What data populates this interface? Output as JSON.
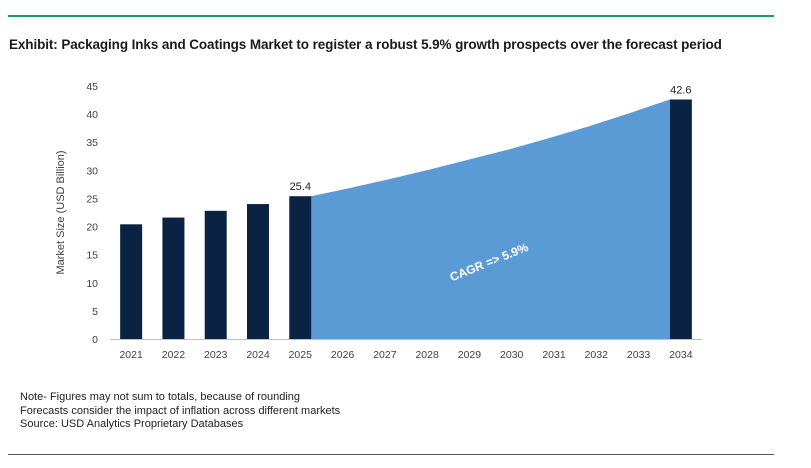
{
  "chart_data": {
    "type": "bar",
    "title": "Exhibit: Packaging Inks and Coatings Market to register a robust 5.9% growth prospects over the forecast period",
    "ylabel": "Market Size (USD Billion)",
    "xlabel": "",
    "ylim": [
      0,
      45
    ],
    "y_ticks": [
      0,
      5,
      10,
      15,
      20,
      25,
      30,
      35,
      40,
      45
    ],
    "categories": [
      "2021",
      "2022",
      "2023",
      "2024",
      "2025",
      "2026",
      "2027",
      "2028",
      "2029",
      "2030",
      "2031",
      "2032",
      "2033",
      "2034"
    ],
    "bars": [
      {
        "x": "2021",
        "value": 20.4
      },
      {
        "x": "2022",
        "value": 21.6
      },
      {
        "x": "2023",
        "value": 22.8
      },
      {
        "x": "2024",
        "value": 24.0
      },
      {
        "x": "2025",
        "value": 25.4,
        "label": "25.4"
      },
      {
        "x": "2034",
        "value": 42.6,
        "label": "42.6"
      }
    ],
    "area": {
      "from": "2025",
      "to": "2034",
      "values": [
        25.4,
        26.9,
        28.5,
        30.2,
        32.0,
        33.8,
        35.8,
        37.9,
        40.2,
        42.6
      ],
      "annotation": "CAGR => 5.9%"
    },
    "colors": {
      "bar": "#0a2342",
      "area": "#5b9bd5",
      "title_rule": "#1a9e5c"
    },
    "grid": false,
    "legend": "none"
  },
  "notes": [
    "Note- Figures may not sum to totals, because of rounding",
    "Forecasts consider the impact of inflation across different markets",
    "Source: USD Analytics Proprietary Databases"
  ]
}
